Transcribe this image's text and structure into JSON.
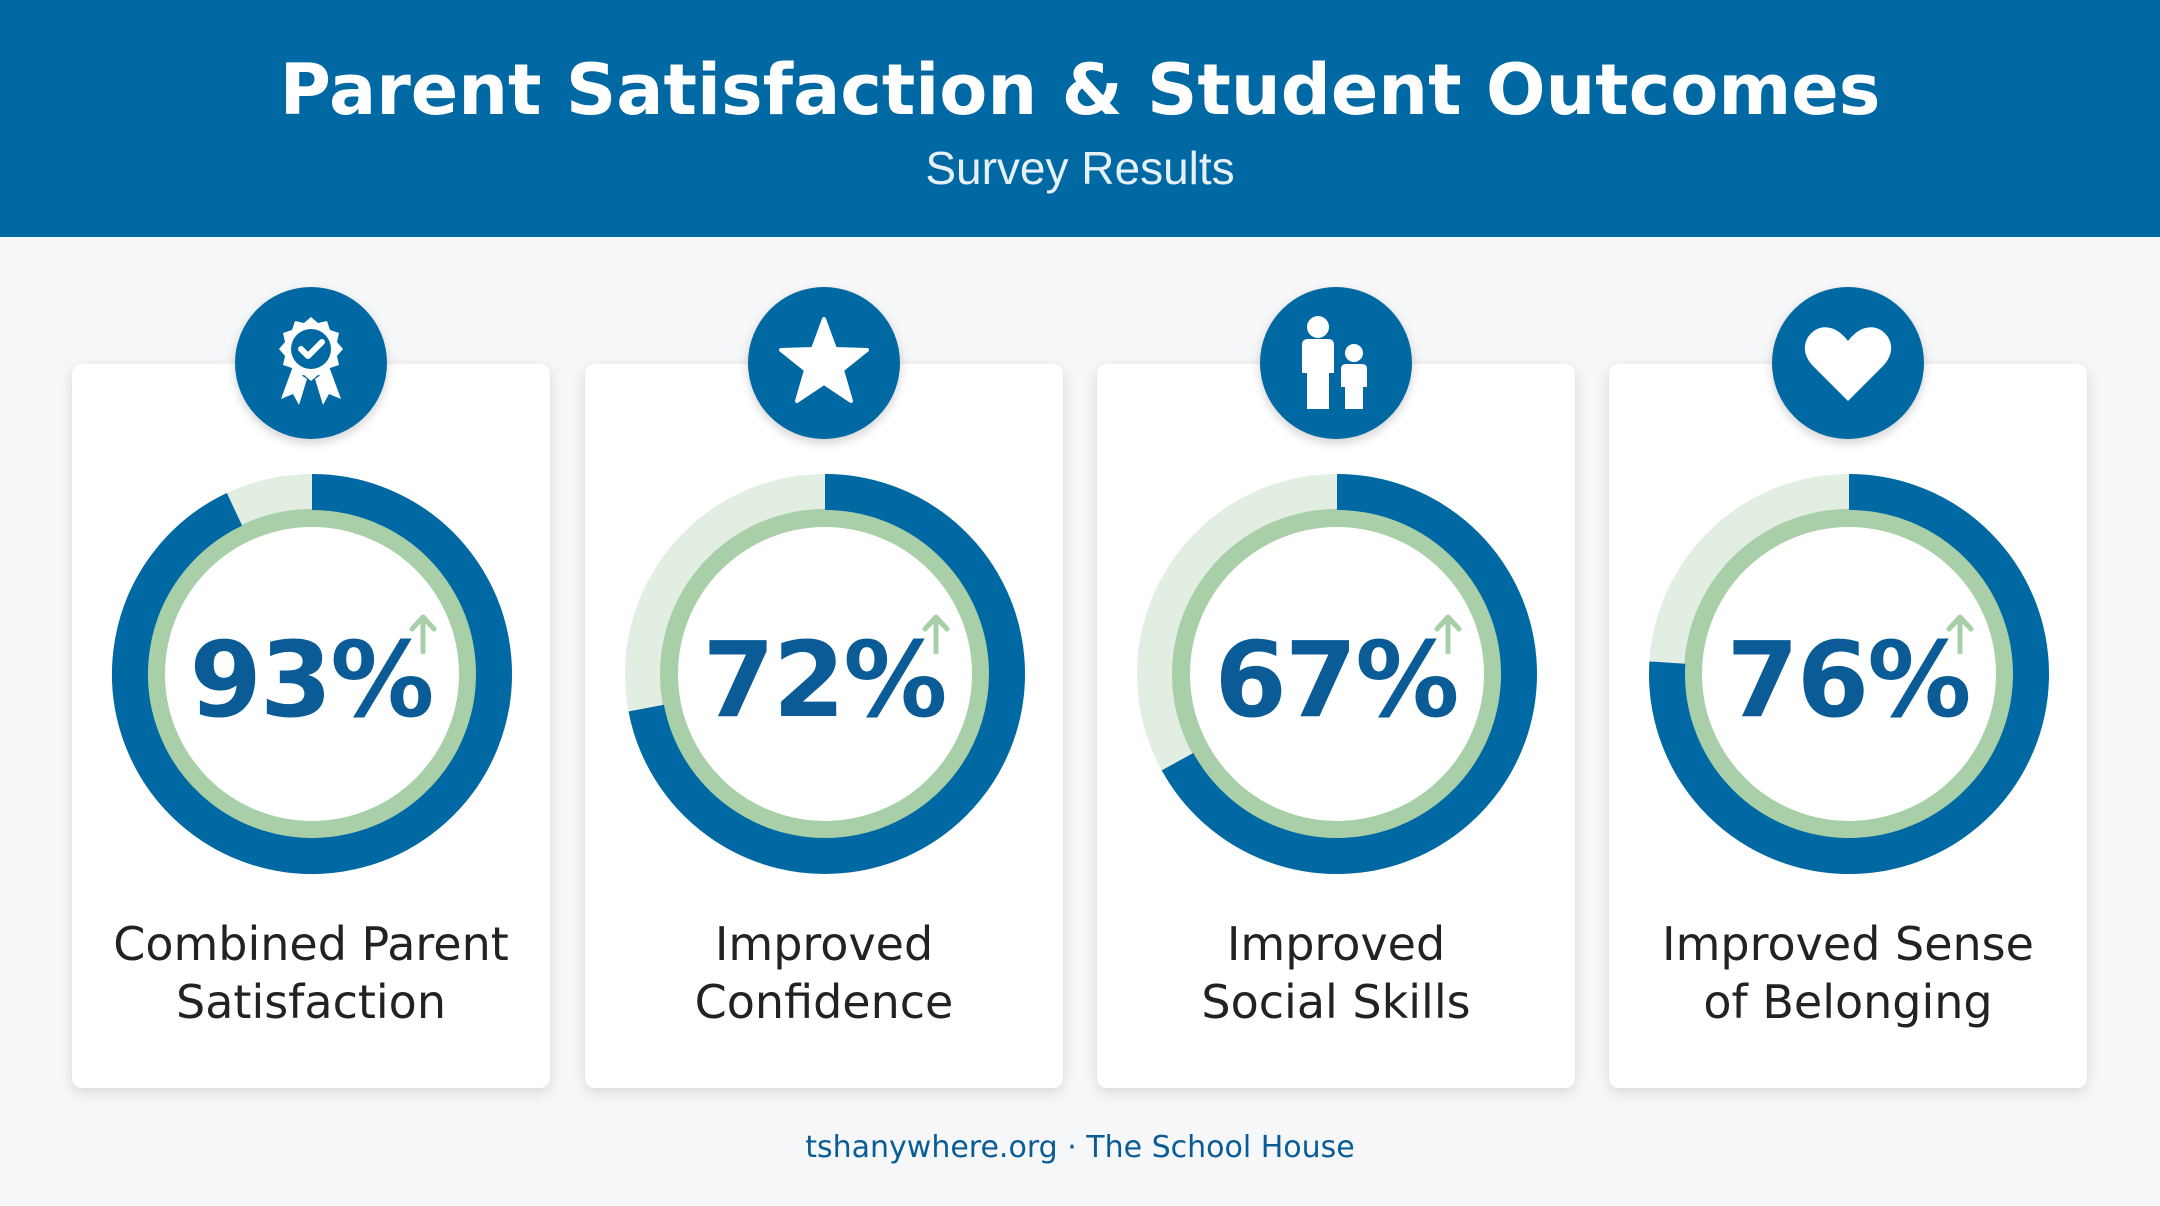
{
  "header": {
    "title": "Parent Satisfaction & Student Outcomes",
    "subtitle": "Survey Results"
  },
  "colors": {
    "header_bg": "#0068a3",
    "ring_blue": "#0068a3",
    "ring_green": "#a9cfa8",
    "ring_light": "#e3eee3",
    "text_blue": "#0b5c96"
  },
  "chart_data": {
    "type": "donut",
    "unit": "%",
    "items": [
      {
        "label_line1": "Combined Parent",
        "label_line2": "Satisfaction",
        "value": 93,
        "display": "93%",
        "icon": "award-ribbon-check-icon"
      },
      {
        "label_line1": "Improved",
        "label_line2": "Confidence",
        "value": 72,
        "display": "72%",
        "icon": "star-icon"
      },
      {
        "label_line1": "Improved",
        "label_line2": "Social Skills",
        "value": 67,
        "display": "67%",
        "icon": "parent-child-icon"
      },
      {
        "label_line1": "Improved Sense",
        "label_line2": "of Belonging",
        "value": 76,
        "display": "76%",
        "icon": "heart-icon"
      }
    ]
  },
  "footer": "tshanywhere.org · The School House"
}
